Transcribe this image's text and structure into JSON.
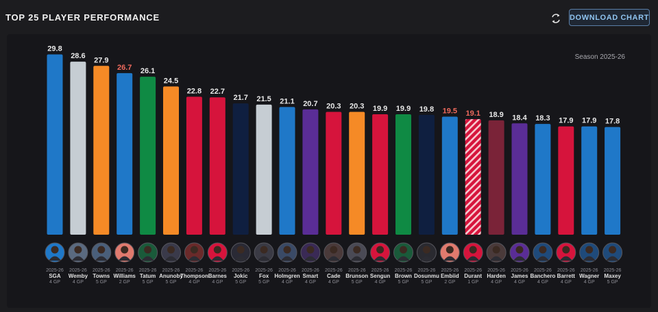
{
  "header": {
    "title": "TOP 25 PLAYER PERFORMANCE",
    "download_label": "DOWNLOAD CHART"
  },
  "chart_data": {
    "type": "bar",
    "subtitle": "Season 2025-26",
    "ylim": [
      0,
      32
    ],
    "categories": [
      "SGA",
      "Wemby",
      "Towns",
      "Williams",
      "Tatum",
      "Anunoby",
      "Thompson",
      "Barnes",
      "Jokic",
      "Fox",
      "Holmgren",
      "Smart",
      "Cade",
      "Brunson",
      "Sengun",
      "Brown",
      "Dosunmu",
      "Embiid",
      "Durant",
      "Harden",
      "James",
      "Banchero",
      "Barrett",
      "Wagner",
      "Maxey"
    ],
    "values": [
      29.8,
      28.6,
      27.9,
      26.7,
      26.1,
      24.5,
      22.8,
      22.7,
      21.7,
      21.5,
      21.1,
      20.7,
      20.3,
      20.3,
      19.9,
      19.9,
      19.8,
      19.5,
      19.1,
      18.9,
      18.4,
      18.3,
      17.9,
      17.9,
      17.8
    ],
    "season_labels": [
      "2025-26",
      "2025-26",
      "2025-26",
      "2025-26",
      "2025-26",
      "2025-26",
      "2025-26",
      "2025-26",
      "2025-26",
      "2025-26",
      "2025-26",
      "2025-26",
      "2025-26",
      "2025-26",
      "2025-26",
      "2025-26",
      "2025-26",
      "2025-26",
      "2025-26",
      "2025-26",
      "2025-26",
      "2025-26",
      "2025-26",
      "2025-26",
      "2025-26"
    ],
    "games": [
      "4 GP",
      "4 GP",
      "5 GP",
      "2 GP",
      "5 GP",
      "5 GP",
      "4 GP",
      "4 GP",
      "5 GP",
      "5 GP",
      "4 GP",
      "4 GP",
      "4 GP",
      "5 GP",
      "4 GP",
      "5 GP",
      "5 GP",
      "2 GP",
      "1 GP",
      "4 GP",
      "4 GP",
      "4 GP",
      "4 GP",
      "4 GP",
      "5 GP"
    ],
    "colors": [
      "#1f78c8",
      "#c6cdd3",
      "#f58a26",
      "#1f78c8",
      "#0f8a44",
      "#f58a26",
      "#d6143c",
      "#d6143c",
      "#0f1f40",
      "#c6cdd3",
      "#1f78c8",
      "#5a2d96",
      "#d6143c",
      "#f58a26",
      "#d6143c",
      "#0f8a44",
      "#0f1f40",
      "#1f78c8",
      "#d6143c",
      "#7a2338",
      "#5a2d96",
      "#1f78c8",
      "#d6143c",
      "#1f78c8",
      "#1f78c8"
    ],
    "highlight_values": [
      3,
      17,
      18
    ],
    "highlight_color": "#f06b5e",
    "hatched": [
      18
    ],
    "avatar_accents": [
      "#1f78c8",
      "#5a6a80",
      "#4a5f7a",
      "#e07a6e",
      "#1a5a3a",
      "#3a3a4a",
      "#6a2a2a",
      "#d6143c",
      "#2a2a35",
      "#3a3a44",
      "#3a4a66",
      "#3a2a55",
      "#4a3a3a",
      "#4a4a55",
      "#d6143c",
      "#1a5a3a",
      "#2a2a30",
      "#e07a6e",
      "#d6143c",
      "#4a3a3a",
      "#5a2d96",
      "#1f4a7a",
      "#d6143c",
      "#1f4a7a",
      "#1f4a7a"
    ]
  }
}
